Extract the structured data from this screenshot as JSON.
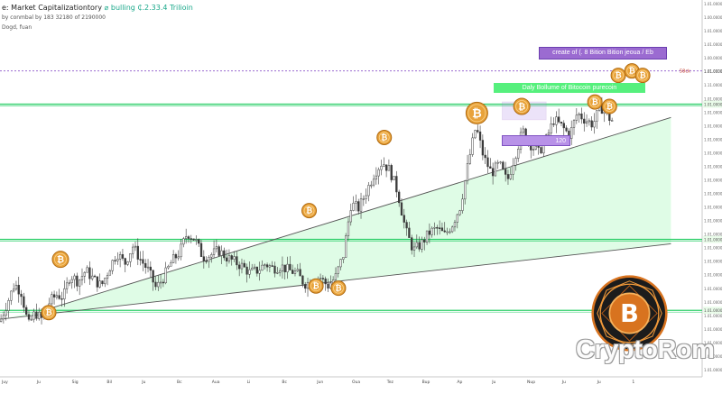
{
  "header": {
    "title_prefix": "e: Market Capitalizationtory",
    "title_highlight": "⌀ bulling ₵.2.33.4 Trilioin",
    "subtitle": "by conmbal by 183 32180 of 2190000",
    "subtitle2": "Dogd, fuan"
  },
  "callouts": {
    "supply": "create of (. 8 Bition Bition jeoua / Eb",
    "supply_marker": "58ck",
    "volume": "Daly Bollume of Bitocoin purecoin",
    "range": "120"
  },
  "watermark": "CryptoRom",
  "colors": {
    "candle": "#3a3a3a",
    "fill": "#d9fbe2",
    "support": "#2fcf6a",
    "trend": "#555555",
    "coin": "#e8a23a",
    "purple": "#9b6bd1",
    "logo_ring": "#d8731f"
  },
  "chart_data": {
    "type": "candlestick",
    "title": "",
    "x_tick_labels": [
      "Juy",
      "Ju",
      "Sig",
      "Bil",
      "Ju",
      "Bc",
      "Aua",
      "Li",
      "Bc",
      "Jun",
      "Oua",
      "Tez",
      "Bup",
      "Ap",
      "Ju",
      "Nup",
      "Ju",
      "Ju",
      "1"
    ],
    "y_tick_labels": [
      "1.01.00000",
      "1.00.00000",
      "1.01.00000",
      "1.01.00000",
      "1.00.00000",
      "1.01.00000",
      "1.11.00000",
      "1.01.00000",
      "1.01.00000",
      "1.01.00000",
      "1.01.00000",
      "1.01.00000",
      "1.01.00000",
      "1.01.00000",
      "1.01.00000",
      "1.01.00000",
      "1.01.00000",
      "1.01.00000",
      "1.01.00000",
      "1.01.00000",
      "1.01.00000",
      "1.01.00000",
      "1.01.00000",
      "1.01.00000",
      "1.01.00000",
      "1.01.00000",
      "1.01.00000",
      "1.01.00000"
    ],
    "horizontal_levels": [
      {
        "value": 103,
        "label": "1.01.00000",
        "color": "#2fcf6a"
      },
      {
        "value": 42,
        "label": "1.01.00000",
        "color": "#2fcf6a"
      },
      {
        "value": 10,
        "label": "1.01.00000",
        "color": "#2fcf6a"
      },
      {
        "value": 118,
        "label": "1.01.00000",
        "color": "#9b6bd1",
        "dashed": true
      }
    ],
    "price_anchors": [
      [
        0,
        5
      ],
      [
        8,
        14
      ],
      [
        15,
        22
      ],
      [
        22,
        18
      ],
      [
        29,
        3
      ],
      [
        36,
        9
      ],
      [
        43,
        6
      ],
      [
        51,
        14
      ],
      [
        58,
        17
      ],
      [
        65,
        16
      ],
      [
        72,
        26
      ],
      [
        80,
        23
      ],
      [
        88,
        28
      ],
      [
        96,
        24
      ],
      [
        104,
        21
      ],
      [
        112,
        29
      ],
      [
        120,
        36
      ],
      [
        128,
        31
      ],
      [
        136,
        39
      ],
      [
        144,
        33
      ],
      [
        152,
        28
      ],
      [
        160,
        20
      ],
      [
        168,
        25
      ],
      [
        176,
        32
      ],
      [
        184,
        36
      ],
      [
        192,
        45
      ],
      [
        200,
        42
      ],
      [
        208,
        34
      ],
      [
        216,
        35
      ],
      [
        224,
        37
      ],
      [
        232,
        34
      ],
      [
        240,
        32
      ],
      [
        248,
        30
      ],
      [
        256,
        27
      ],
      [
        264,
        28
      ],
      [
        272,
        31
      ],
      [
        280,
        29
      ],
      [
        288,
        30
      ],
      [
        296,
        28
      ],
      [
        304,
        27
      ],
      [
        312,
        22
      ],
      [
        320,
        23
      ],
      [
        328,
        25
      ],
      [
        336,
        21
      ],
      [
        344,
        25
      ],
      [
        352,
        35
      ],
      [
        360,
        58
      ],
      [
        368,
        56
      ],
      [
        376,
        64
      ],
      [
        384,
        72
      ],
      [
        392,
        77
      ],
      [
        400,
        73
      ],
      [
        408,
        63
      ],
      [
        416,
        46
      ],
      [
        424,
        37
      ],
      [
        432,
        40
      ],
      [
        440,
        45
      ],
      [
        448,
        47
      ],
      [
        456,
        44
      ],
      [
        464,
        49
      ],
      [
        472,
        57
      ],
      [
        480,
        76
      ],
      [
        488,
        93
      ],
      [
        496,
        79
      ],
      [
        504,
        72
      ],
      [
        512,
        76
      ],
      [
        520,
        68
      ],
      [
        528,
        80
      ],
      [
        536,
        91
      ],
      [
        544,
        85
      ],
      [
        552,
        81
      ],
      [
        560,
        87
      ],
      [
        568,
        96
      ],
      [
        576,
        93
      ],
      [
        584,
        89
      ],
      [
        592,
        99
      ],
      [
        600,
        96
      ],
      [
        608,
        94
      ],
      [
        616,
        102
      ],
      [
        624,
        97
      ],
      [
        630,
        95
      ]
    ],
    "trendlines": [
      {
        "from": [
          0,
          6
        ],
        "to": [
          688,
          40
        ],
        "role": "lower"
      },
      {
        "from": [
          45,
          10
        ],
        "to": [
          688,
          97
        ],
        "role": "upper"
      }
    ],
    "coins": [
      [
        62,
        33
      ],
      [
        50,
        9
      ],
      [
        317,
        55
      ],
      [
        394,
        88
      ],
      [
        489,
        99
      ],
      [
        535,
        102
      ],
      [
        610,
        104
      ],
      [
        625,
        102
      ],
      [
        634,
        116
      ],
      [
        648,
        118
      ],
      [
        659,
        116
      ],
      [
        324,
        21
      ],
      [
        347,
        20
      ]
    ],
    "xlim": [
      0,
      720
    ],
    "ylim": [
      -20,
      150
    ],
    "grid": false,
    "legend": "none"
  }
}
